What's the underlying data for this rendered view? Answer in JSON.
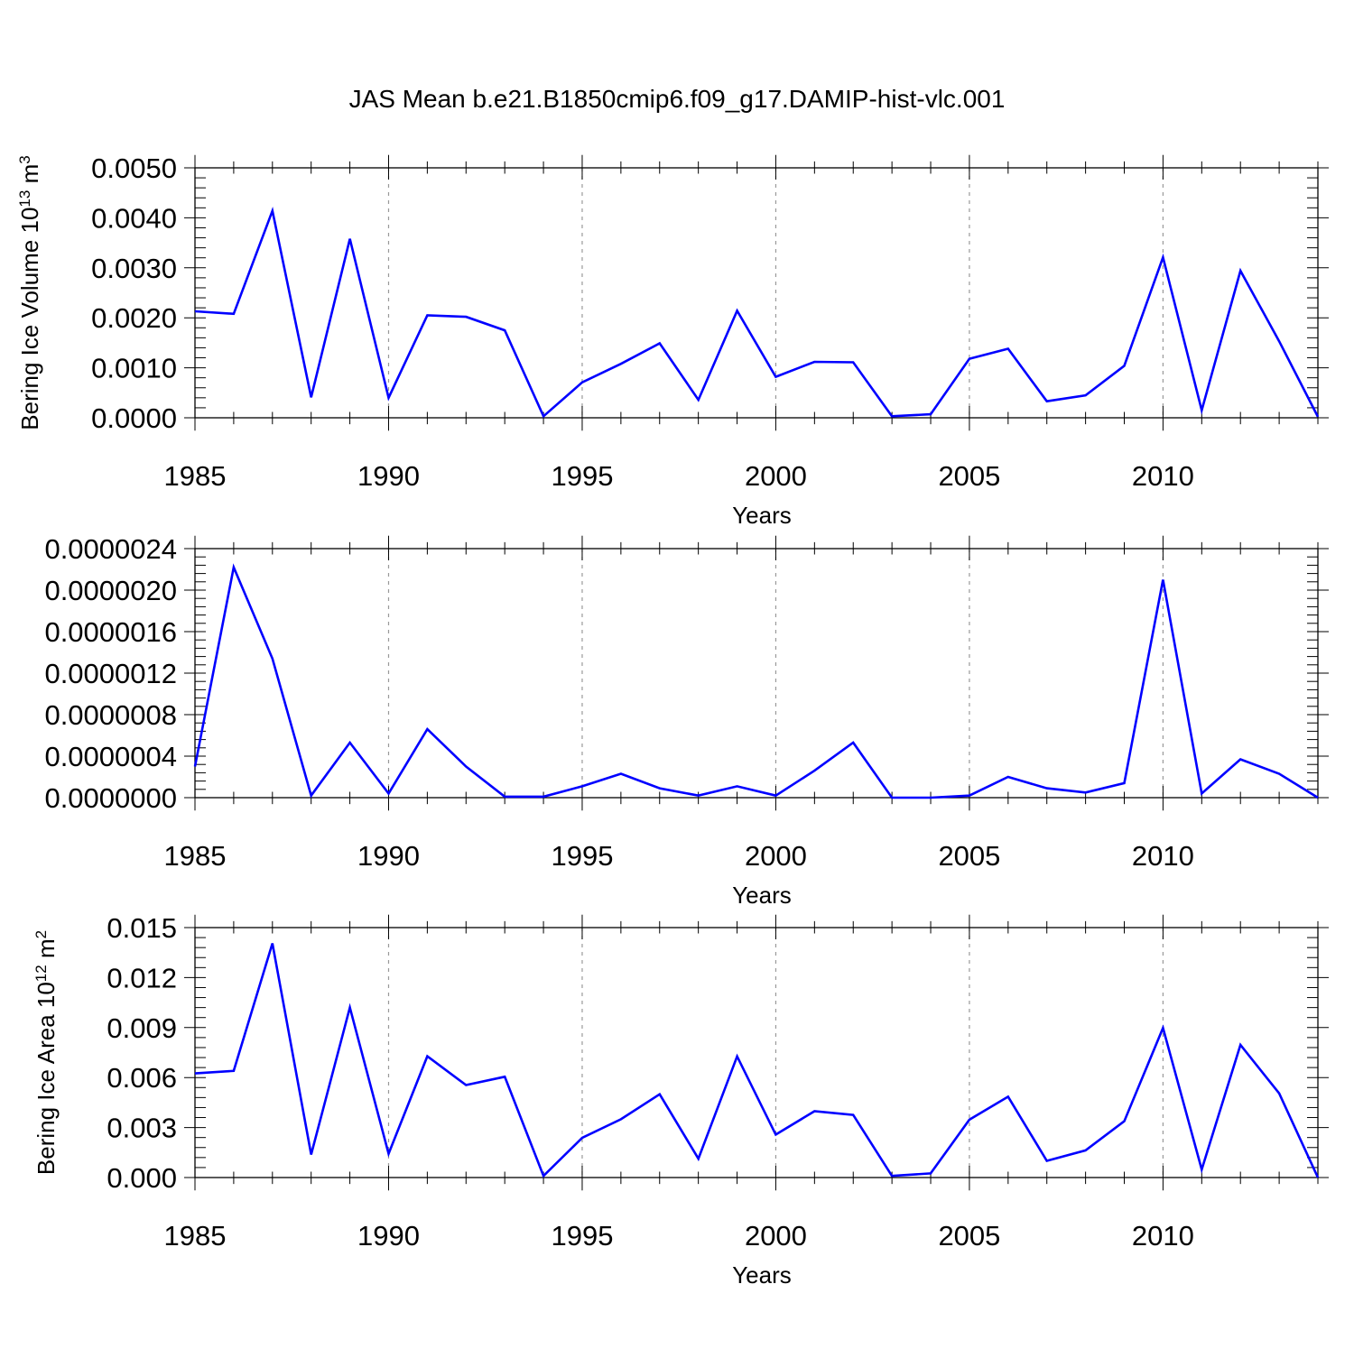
{
  "title": "JAS Mean b.e21.B1850cmip6.f09_g17.DAMIP-hist-vlc.001",
  "line_color": "#0000ff",
  "chart_data": [
    {
      "type": "line",
      "ylabel_main": "Bering Ice Volume 10",
      "ylabel_exp": "13",
      "ylabel_unit": " m",
      "ylabel_unit_exp": "3",
      "xlabel": "Years",
      "xlim": [
        1985,
        2014
      ],
      "ylim": [
        0,
        0.005
      ],
      "xticks": [
        "1985",
        "1990",
        "1995",
        "2000",
        "2005",
        "2010"
      ],
      "yticks": [
        "0.0000",
        "0.0010",
        "0.0020",
        "0.0030",
        "0.0040",
        "0.0050"
      ],
      "x": [
        1985,
        1986,
        1987,
        1988,
        1989,
        1990,
        1991,
        1992,
        1993,
        1994,
        1995,
        1996,
        1997,
        1998,
        1999,
        2000,
        2001,
        2002,
        2003,
        2004,
        2005,
        2006,
        2007,
        2008,
        2009,
        2010,
        2011,
        2012,
        2013,
        2014
      ],
      "values": [
        0.00213,
        0.00208,
        0.00414,
        0.00041,
        0.00358,
        0.0004,
        0.00205,
        0.00202,
        0.00175,
        3e-05,
        0.00071,
        0.00108,
        0.00149,
        0.00036,
        0.00214,
        0.00082,
        0.00112,
        0.00111,
        3e-05,
        7e-05,
        0.00118,
        0.00138,
        0.00033,
        0.00045,
        0.00104,
        0.00321,
        0.00015,
        0.00294,
        0.00153,
        2e-05
      ]
    },
    {
      "type": "line",
      "ylabel_main": "",
      "xlabel": "Years",
      "xlim": [
        1985,
        2014
      ],
      "ylim": [
        0,
        2.4e-06
      ],
      "xticks": [
        "1985",
        "1990",
        "1995",
        "2000",
        "2005",
        "2010"
      ],
      "yticks": [
        "0.0000000",
        "0.0000004",
        "0.0000008",
        "0.0000012",
        "0.0000016",
        "0.0000020",
        "0.0000024"
      ],
      "x": [
        1985,
        1986,
        1987,
        1988,
        1989,
        1990,
        1991,
        1992,
        1993,
        1994,
        1995,
        1996,
        1997,
        1998,
        1999,
        2000,
        2001,
        2002,
        2003,
        2004,
        2005,
        2006,
        2007,
        2008,
        2009,
        2010,
        2011,
        2012,
        2013,
        2014
      ],
      "values": [
        3e-07,
        2.22e-06,
        1.34e-06,
        2e-08,
        5.3e-07,
        4e-08,
        6.6e-07,
        3e-07,
        1e-08,
        1e-08,
        1.1e-07,
        2.3e-07,
        9e-08,
        2e-08,
        1.1e-07,
        2e-08,
        2.6e-07,
        5.3e-07,
        0.0,
        0.0,
        2e-08,
        2e-07,
        9e-08,
        5e-08,
        1.4e-07,
        2.1e-06,
        4e-08,
        3.7e-07,
        2.3e-07,
        0.0
      ]
    },
    {
      "type": "line",
      "ylabel_main": "Bering Ice Area 10",
      "ylabel_exp": "12",
      "ylabel_unit": " m",
      "ylabel_unit_exp": "2",
      "xlabel": "Years",
      "xlim": [
        1985,
        2014
      ],
      "ylim": [
        0,
        0.015
      ],
      "xticks": [
        "1985",
        "1990",
        "1995",
        "2000",
        "2005",
        "2010"
      ],
      "yticks": [
        "0.000",
        "0.003",
        "0.006",
        "0.009",
        "0.012",
        "0.015"
      ],
      "x": [
        1985,
        1986,
        1987,
        1988,
        1989,
        1990,
        1991,
        1992,
        1993,
        1994,
        1995,
        1996,
        1997,
        1998,
        1999,
        2000,
        2001,
        2002,
        2003,
        2004,
        2005,
        2006,
        2007,
        2008,
        2009,
        2010,
        2011,
        2012,
        2013,
        2014
      ],
      "values": [
        0.00625,
        0.0064,
        0.01405,
        0.00138,
        0.0102,
        0.00143,
        0.00728,
        0.00555,
        0.00605,
        0.0001,
        0.00238,
        0.0035,
        0.005,
        0.00113,
        0.00727,
        0.00258,
        0.00398,
        0.00376,
        0.0001,
        0.00025,
        0.00347,
        0.00485,
        0.001,
        0.00163,
        0.00338,
        0.00898,
        0.00048,
        0.00796,
        0.00505,
        0.0
      ]
    }
  ]
}
